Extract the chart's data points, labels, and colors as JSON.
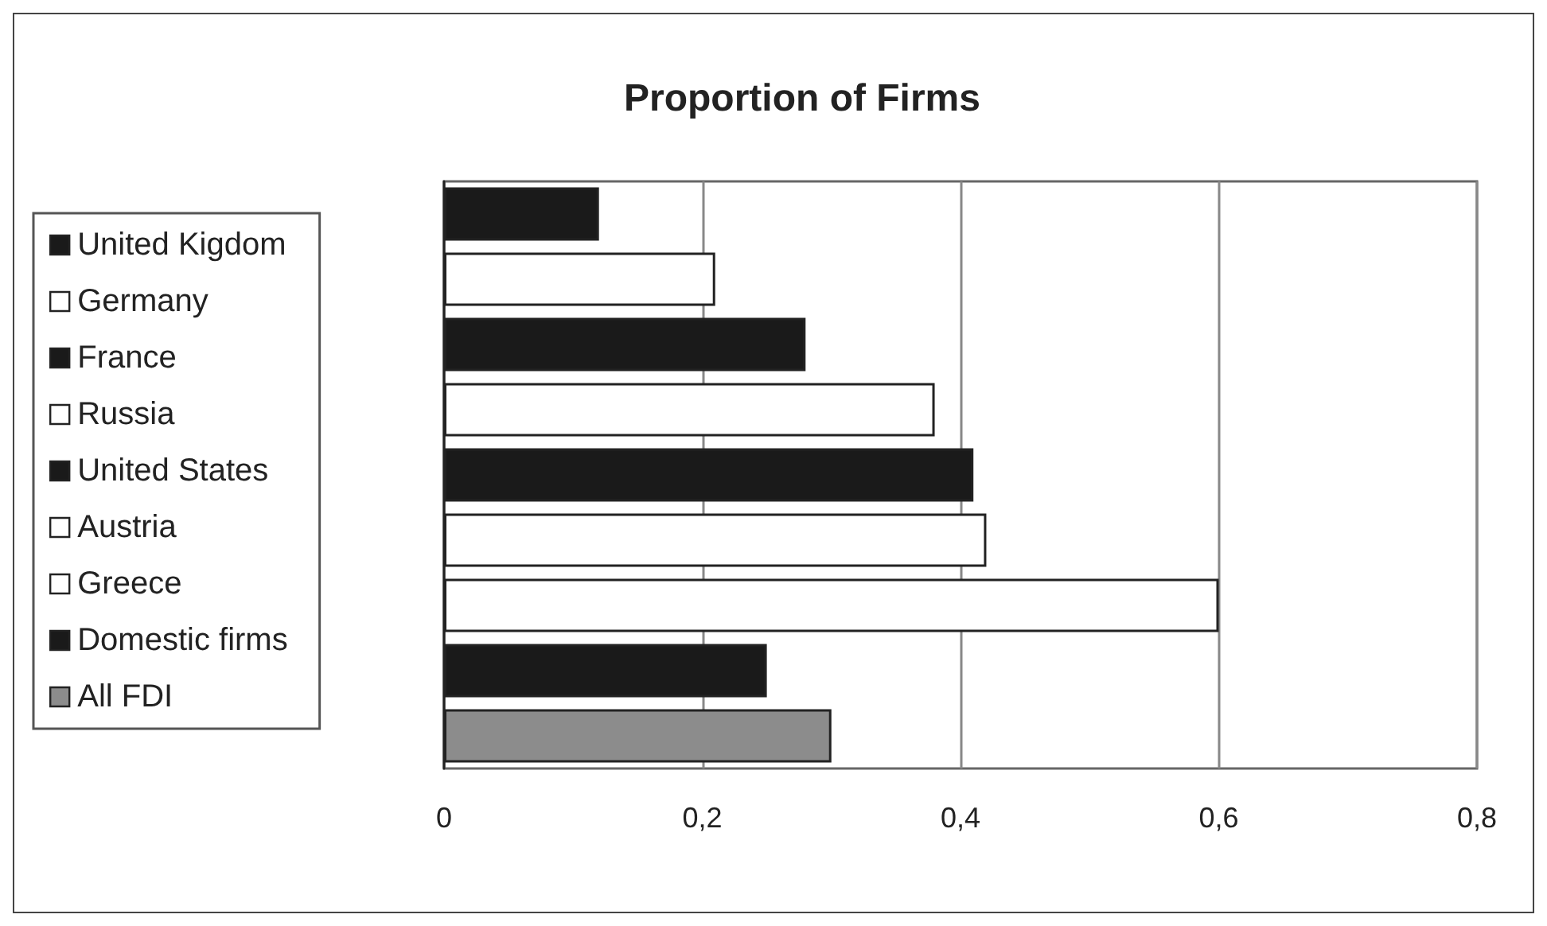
{
  "chart_data": {
    "type": "bar",
    "orientation": "horizontal",
    "title": "Proportion of Firms",
    "categories": [
      null,
      null,
      null,
      null,
      null,
      null,
      null,
      null,
      null
    ],
    "series": [
      {
        "name": "United Kigdom",
        "color": "#1a1a1a",
        "values": [
          0.12,
          null,
          null,
          null,
          null,
          null,
          null,
          null,
          null
        ]
      },
      {
        "name": "Germany",
        "color": "#ffffff",
        "values": [
          null,
          0.21,
          null,
          null,
          null,
          null,
          null,
          null,
          null
        ]
      },
      {
        "name": "France",
        "color": "#1a1a1a",
        "values": [
          null,
          null,
          0.28,
          null,
          null,
          null,
          null,
          null,
          null
        ]
      },
      {
        "name": "Russia",
        "color": "#ffffff",
        "values": [
          null,
          null,
          null,
          0.38,
          null,
          null,
          null,
          null,
          null
        ]
      },
      {
        "name": "United States",
        "color": "#1a1a1a",
        "values": [
          null,
          null,
          null,
          null,
          0.41,
          null,
          null,
          null,
          null
        ]
      },
      {
        "name": "Austria",
        "color": "#ffffff",
        "values": [
          null,
          null,
          null,
          null,
          null,
          0.42,
          null,
          null,
          null
        ]
      },
      {
        "name": "Greece",
        "color": "#ffffff",
        "values": [
          null,
          null,
          null,
          null,
          null,
          null,
          0.6,
          null,
          null
        ]
      },
      {
        "name": "Domestic firms",
        "color": "#1a1a1a",
        "values": [
          null,
          null,
          null,
          null,
          null,
          null,
          null,
          0.25,
          null
        ]
      },
      {
        "name": "All FDI",
        "color": "#8c8c8c",
        "values": [
          null,
          null,
          null,
          null,
          null,
          null,
          null,
          null,
          0.3
        ]
      }
    ],
    "xlim": [
      0,
      0.8
    ],
    "xticks": [
      0,
      {
        "value": 0.2,
        "label": "0,2"
      },
      {
        "value": 0.4,
        "label": "0,4"
      },
      {
        "value": 0.6,
        "label": "0,6"
      },
      {
        "value": 0.8,
        "label": "0,8"
      }
    ],
    "grid": "x",
    "legend": "left",
    "tick_labels": "x"
  }
}
